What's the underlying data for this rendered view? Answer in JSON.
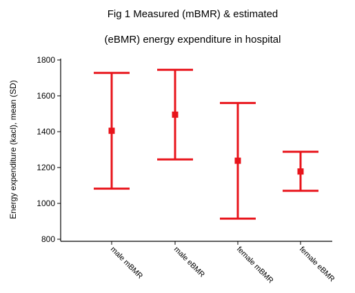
{
  "chart_data": {
    "type": "errorbar",
    "title_lines": [
      "Fig 1  Measured (mBMR) & estimated",
      "(eBMR) energy expenditure in hospital"
    ],
    "xlabel": "",
    "ylabel": "Energy expenditure (kacl), mean (SD)",
    "ylim": [
      800,
      1800
    ],
    "yticks": [
      800,
      1000,
      1200,
      1400,
      1600,
      1800
    ],
    "categories": [
      "male mBMR",
      "male eBMR",
      "female mBMR",
      "female eBMR"
    ],
    "series": [
      {
        "mean": [
          1405,
          1495,
          1238,
          1178
        ],
        "upper": [
          1728,
          1745,
          1560,
          1288
        ],
        "lower": [
          1082,
          1245,
          915,
          1070
        ]
      }
    ],
    "grid": false,
    "color": "#e8141b"
  }
}
